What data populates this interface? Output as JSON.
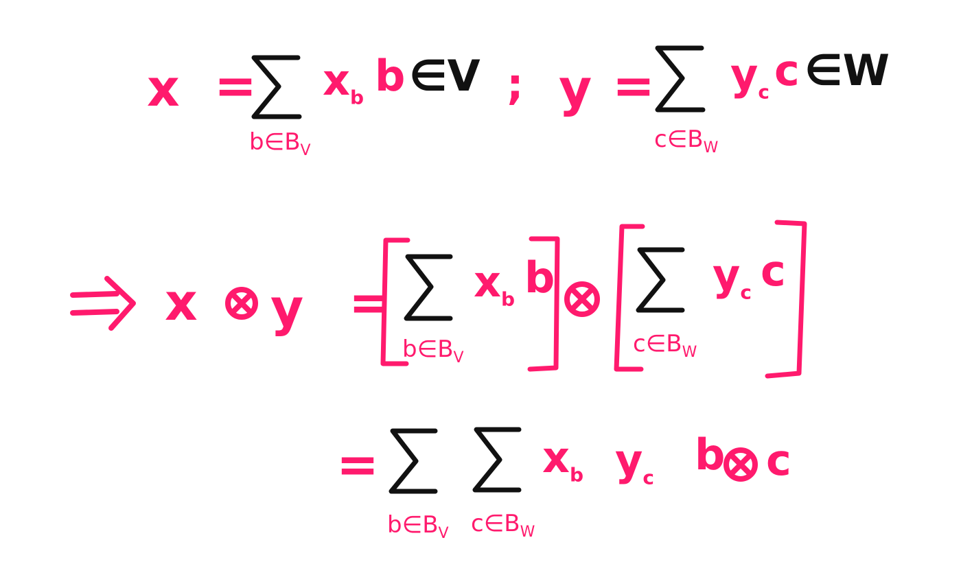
{
  "line1": {
    "lhs_x": "x",
    "eq": "=",
    "sum_limit": "b∈B",
    "sum_limit_sub": "V",
    "term_coef": "x",
    "term_coef_sub": "b",
    "term_vec": "b",
    "member": "∈V",
    "sep": ";",
    "lhs_y": "y",
    "eq2": "=",
    "sum2_limit": "c∈B",
    "sum2_limit_sub": "W",
    "term2_coef": "y",
    "term2_coef_sub": "c",
    "term2_vec": "c",
    "member2": "∈W"
  },
  "line2": {
    "lhs_x": "x",
    "lhs_y": "y",
    "eq": "=",
    "sumA_limit": "b∈B",
    "sumA_limit_sub": "V",
    "termA_coef": "x",
    "termA_coef_sub": "b",
    "termA_vec": "b",
    "sumB_limit": "c∈B",
    "sumB_limit_sub": "W",
    "termB_coef": "y",
    "termB_coef_sub": "c",
    "termB_vec": "c"
  },
  "line3": {
    "eq": "=",
    "sumA_limit": "b∈B",
    "sumA_limit_sub": "V",
    "sumB_limit": "c∈B",
    "sumB_limit_sub": "W",
    "coef1": "x",
    "coef1_sub": "b",
    "coef2": "y",
    "coef2_sub": "c",
    "vec1": "b",
    "vec2": "c"
  },
  "colors": {
    "accent": "#ff1a6d",
    "ink": "#111111",
    "background": "#ffffff"
  }
}
